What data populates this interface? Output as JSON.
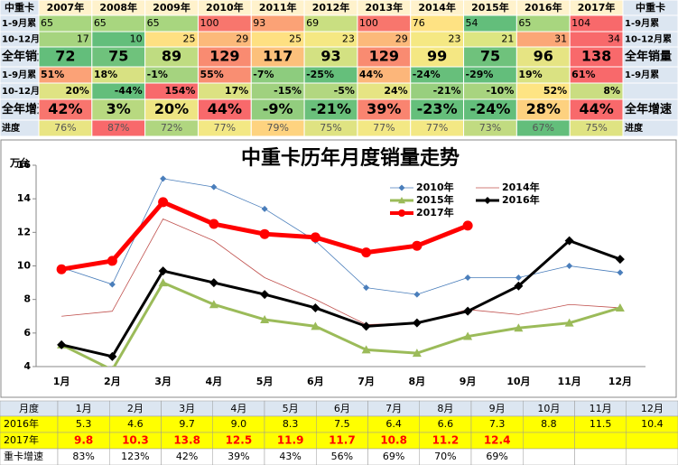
{
  "summary_table": {
    "header": [
      "中重卡",
      "2007年",
      "2008年",
      "2009年",
      "2010年",
      "2011年",
      "2012年",
      "2013年",
      "2014年",
      "2015年",
      "2016年",
      "2017年",
      "中重卡"
    ],
    "rows": [
      {
        "label": "1-9月累",
        "cells": [
          "65",
          "65",
          "65",
          "100",
          "93",
          "69",
          "100",
          "76",
          "54",
          "65",
          "104"
        ],
        "colors": [
          "#a8d67f",
          "#a8d67f",
          "#a8d67f",
          "#f8766d",
          "#fba276",
          "#c9df81",
          "#f8766d",
          "#fee283",
          "#63be7b",
          "#a8d67f",
          "#f8696b"
        ],
        "end_label": "1-9月累"
      },
      {
        "label": "10-12月累",
        "cells": [
          "17",
          "10",
          "25",
          "29",
          "25",
          "23",
          "29",
          "23",
          "21",
          "31",
          "34"
        ],
        "colors": [
          "#a6d47f",
          "#63be7b",
          "#fee082",
          "#fcb97a",
          "#fee082",
          "#f5e883",
          "#fcb97a",
          "#f5e883",
          "#dde682",
          "#fba777",
          "#f8696b"
        ],
        "end_label": "10-12月累"
      },
      {
        "label": "全年销量",
        "cells": [
          "72",
          "75",
          "89",
          "129",
          "117",
          "93",
          "129",
          "99",
          "75",
          "96",
          "138"
        ],
        "colors": [
          "#63be7b",
          "#6fc27c",
          "#bfdc81",
          "#f98b71",
          "#fcc07b",
          "#d3e182",
          "#f98b71",
          "#f4e783",
          "#6fc27c",
          "#e6e483",
          "#f8696b"
        ],
        "end_label": "全年销量"
      },
      {
        "label": "1-9月累",
        "cells": [
          "51%",
          "18%",
          "-1%",
          "55%",
          "-7%",
          "-25%",
          "44%",
          "-24%",
          "-29%",
          "19%",
          "61%"
        ],
        "colors": [
          "#fba277",
          "#d8e182",
          "#a5d37f",
          "#f98e72",
          "#8dcc7e",
          "#65bf7b",
          "#fcb67a",
          "#67bf7b",
          "#63be7b",
          "#dae282",
          "#f8696b"
        ],
        "end_label": "1-9月累"
      },
      {
        "label": "10-12月累",
        "cells": [
          "20%",
          "-44%",
          "154%",
          "17%",
          "-15%",
          "-5%",
          "24%",
          "-21%",
          "-10%",
          "52%",
          "8%"
        ],
        "colors": [
          "#dfe383",
          "#63be7b",
          "#f8696b",
          "#dce282",
          "#a0d17f",
          "#b2d780",
          "#e6e483",
          "#98cf7e",
          "#a8d47f",
          "#fee483",
          "#cadd81"
        ]
      },
      {
        "label": "全年增速",
        "cells": [
          "42%",
          "3%",
          "20%",
          "44%",
          "-9%",
          "-21%",
          "39%",
          "-23%",
          "-24%",
          "28%",
          "44%"
        ],
        "colors": [
          "#f8756e",
          "#b8d980",
          "#eee583",
          "#f8696b",
          "#92cd7e",
          "#6ac07b",
          "#f98470",
          "#65bf7b",
          "#63be7b",
          "#fdd17f",
          "#f8696b"
        ],
        "end_label": "全年增速"
      },
      {
        "label": "进度",
        "cells": [
          "76%",
          "87%",
          "72%",
          "77%",
          "79%",
          "75%",
          "77%",
          "77%",
          "73%",
          "67%",
          "75%"
        ],
        "colors": [
          "#e9e583",
          "#f8696b",
          "#b0d680",
          "#f3e884",
          "#fed37f",
          "#dfe382",
          "#f3e884",
          "#f3e884",
          "#c1db81",
          "#63be7b",
          "#dfe382"
        ],
        "end_label": "进度"
      }
    ]
  },
  "chart_data": {
    "type": "line",
    "title": "中重卡历年月度销量走势",
    "y_label": "万台",
    "categories": [
      "1月",
      "2月",
      "3月",
      "4月",
      "5月",
      "6月",
      "7月",
      "8月",
      "9月",
      "10月",
      "11月",
      "12月"
    ],
    "ylim": [
      4,
      16
    ],
    "yticks": [
      4,
      6,
      8,
      10,
      12,
      14,
      16
    ],
    "legend": "upper center",
    "series": [
      {
        "name": "2010年",
        "color": "#4a7ebb",
        "values": [
          9.9,
          8.9,
          15.2,
          14.7,
          13.4,
          11.5,
          8.7,
          8.3,
          9.3,
          9.3,
          10.0,
          9.6
        ]
      },
      {
        "name": "2014年",
        "color": "#c0504d",
        "values": [
          7.0,
          7.3,
          12.8,
          11.5,
          9.3,
          8.0,
          6.5,
          6.6,
          7.4,
          7.1,
          7.7,
          7.5
        ]
      },
      {
        "name": "2015年",
        "color": "#9bbb59",
        "values": [
          5.3,
          3.8,
          9.0,
          7.7,
          6.8,
          6.4,
          5.0,
          4.8,
          5.8,
          6.3,
          6.6,
          7.5
        ]
      },
      {
        "name": "2016年",
        "color": "#000000",
        "values": [
          5.3,
          4.6,
          9.7,
          9.0,
          8.3,
          7.5,
          6.4,
          6.6,
          7.3,
          8.8,
          11.5,
          10.4
        ]
      },
      {
        "name": "2017年",
        "color": "#ff0000",
        "values": [
          9.8,
          10.3,
          13.8,
          12.5,
          11.9,
          11.7,
          10.8,
          11.2,
          12.4,
          null,
          null,
          null
        ]
      }
    ]
  },
  "monthly_table": {
    "header": [
      "月度",
      "1月",
      "2月",
      "3月",
      "4月",
      "5月",
      "6月",
      "7月",
      "8月",
      "9月",
      "10月",
      "11月",
      "12月"
    ],
    "rows": [
      {
        "label": "2016年",
        "cells": [
          "5.3",
          "4.6",
          "9.7",
          "9.0",
          "8.3",
          "7.5",
          "6.4",
          "6.6",
          "7.3",
          "8.8",
          "11.5",
          "10.4"
        ]
      },
      {
        "label": "2017年",
        "cells": [
          "9.8",
          "10.3",
          "13.8",
          "12.5",
          "11.9",
          "11.7",
          "10.8",
          "11.2",
          "12.4"
        ]
      },
      {
        "label": "重卡增速",
        "cells": [
          "83%",
          "123%",
          "42%",
          "39%",
          "43%",
          "56%",
          "69%",
          "70%",
          "69%"
        ]
      }
    ]
  }
}
